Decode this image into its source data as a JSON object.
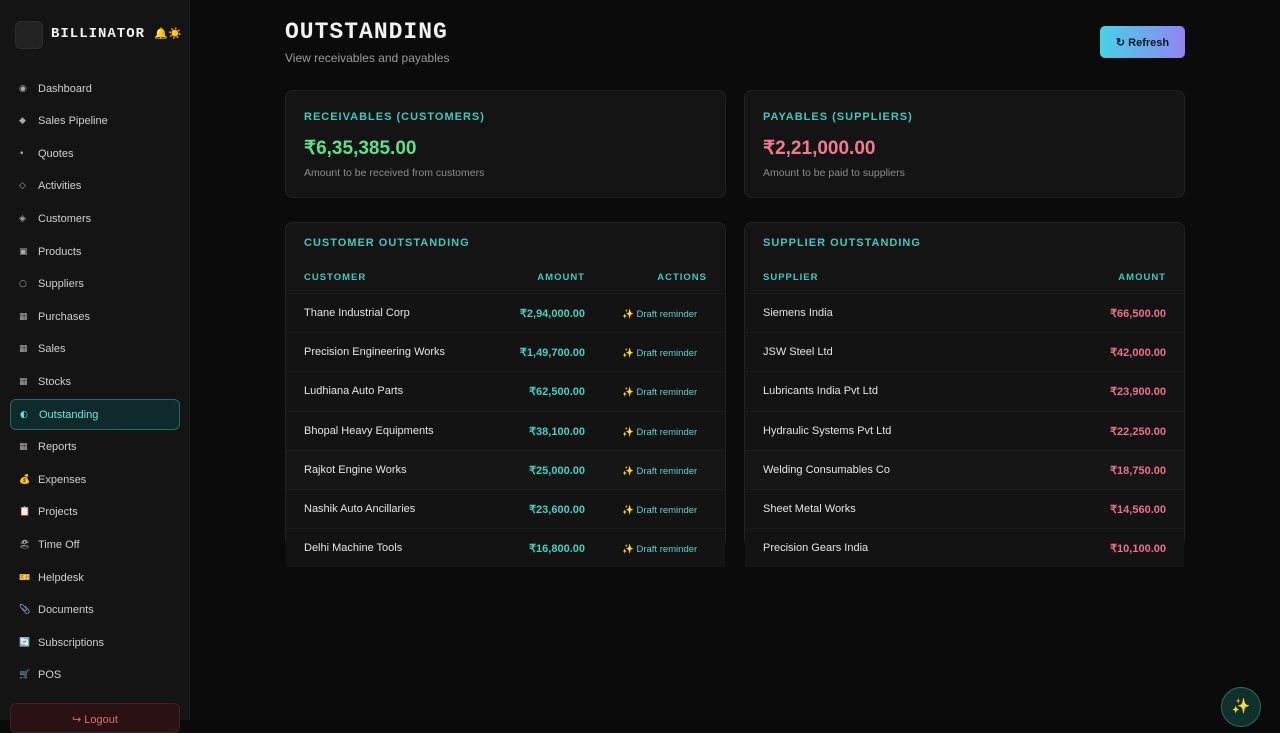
{
  "sidebar": {
    "brand": "BILLINATOR",
    "brand_icons": "🔔☀️",
    "nav": [
      {
        "icon": "◉",
        "label": "Dashboard"
      },
      {
        "icon": "◆",
        "label": "Sales Pipeline"
      },
      {
        "icon": "•",
        "label": "Quotes"
      },
      {
        "icon": "◇",
        "label": "Activities"
      },
      {
        "icon": "◈",
        "label": "Customers"
      },
      {
        "icon": "▣",
        "label": "Products"
      },
      {
        "icon": "○",
        "label": "Suppliers"
      },
      {
        "icon": "▦",
        "label": "Purchases"
      },
      {
        "icon": "▦",
        "label": "Sales"
      },
      {
        "icon": "▦",
        "label": "Stocks"
      },
      {
        "icon": "◐",
        "label": "Outstanding"
      },
      {
        "icon": "▦",
        "label": "Reports"
      },
      {
        "icon": "💰",
        "label": "Expenses"
      },
      {
        "icon": "📋",
        "label": "Projects"
      },
      {
        "icon": "🏖",
        "label": "Time Off"
      },
      {
        "icon": "🎫",
        "label": "Helpdesk"
      },
      {
        "icon": "📎",
        "label": "Documents"
      },
      {
        "icon": "🔄",
        "label": "Subscriptions"
      },
      {
        "icon": "🛒",
        "label": "POS"
      }
    ],
    "active": "Outstanding",
    "logout": "↪ Logout"
  },
  "header": {
    "title": "OUTSTANDING",
    "subtitle": "View receivables and payables",
    "refresh": "↻ Refresh"
  },
  "summary": [
    {
      "label": "RECEIVABLES (CUSTOMERS)",
      "amount": "₹6,35,385.00",
      "note": "Amount to be received from customers"
    },
    {
      "label": "PAYABLES (SUPPLIERS)",
      "amount": "₹2,21,000.00",
      "note": "Amount to be paid to suppliers"
    }
  ],
  "customer_table": {
    "title": "CUSTOMER OUTSTANDING",
    "columns": [
      "CUSTOMER",
      "AMOUNT",
      "ACTIONS"
    ],
    "rows": [
      [
        "Thane Industrial Corp",
        "₹2,94,000.00",
        "✨ Draft reminder"
      ],
      [
        "Precision Engineering Works",
        "₹1,49,700.00",
        "✨ Draft reminder"
      ],
      [
        "Ludhiana Auto Parts",
        "₹62,500.00",
        "✨ Draft reminder"
      ],
      [
        "Bhopal Heavy Equipments",
        "₹38,100.00",
        "✨ Draft reminder"
      ],
      [
        "Rajkot Engine Works",
        "₹25,000.00",
        "✨ Draft reminder"
      ],
      [
        "Nashik Auto Ancillaries",
        "₹23,600.00",
        "✨ Draft reminder"
      ],
      [
        "Delhi Machine Tools",
        "₹16,800.00",
        "✨ Draft reminder"
      ]
    ]
  },
  "supplier_table": {
    "title": "SUPPLIER OUTSTANDING",
    "columns": [
      "SUPPLIER",
      "AMOUNT"
    ],
    "rows": [
      [
        "Siemens India",
        "₹66,500.00"
      ],
      [
        "JSW Steel Ltd",
        "₹42,000.00"
      ],
      [
        "Lubricants India Pvt Ltd",
        "₹23,900.00"
      ],
      [
        "Hydraulic Systems Pvt Ltd",
        "₹22,250.00"
      ],
      [
        "Welding Consumables Co",
        "₹18,750.00"
      ],
      [
        "Sheet Metal Works",
        "₹14,560.00"
      ],
      [
        "Precision Gears India",
        "₹10,100.00"
      ]
    ]
  },
  "fab": "✨"
}
